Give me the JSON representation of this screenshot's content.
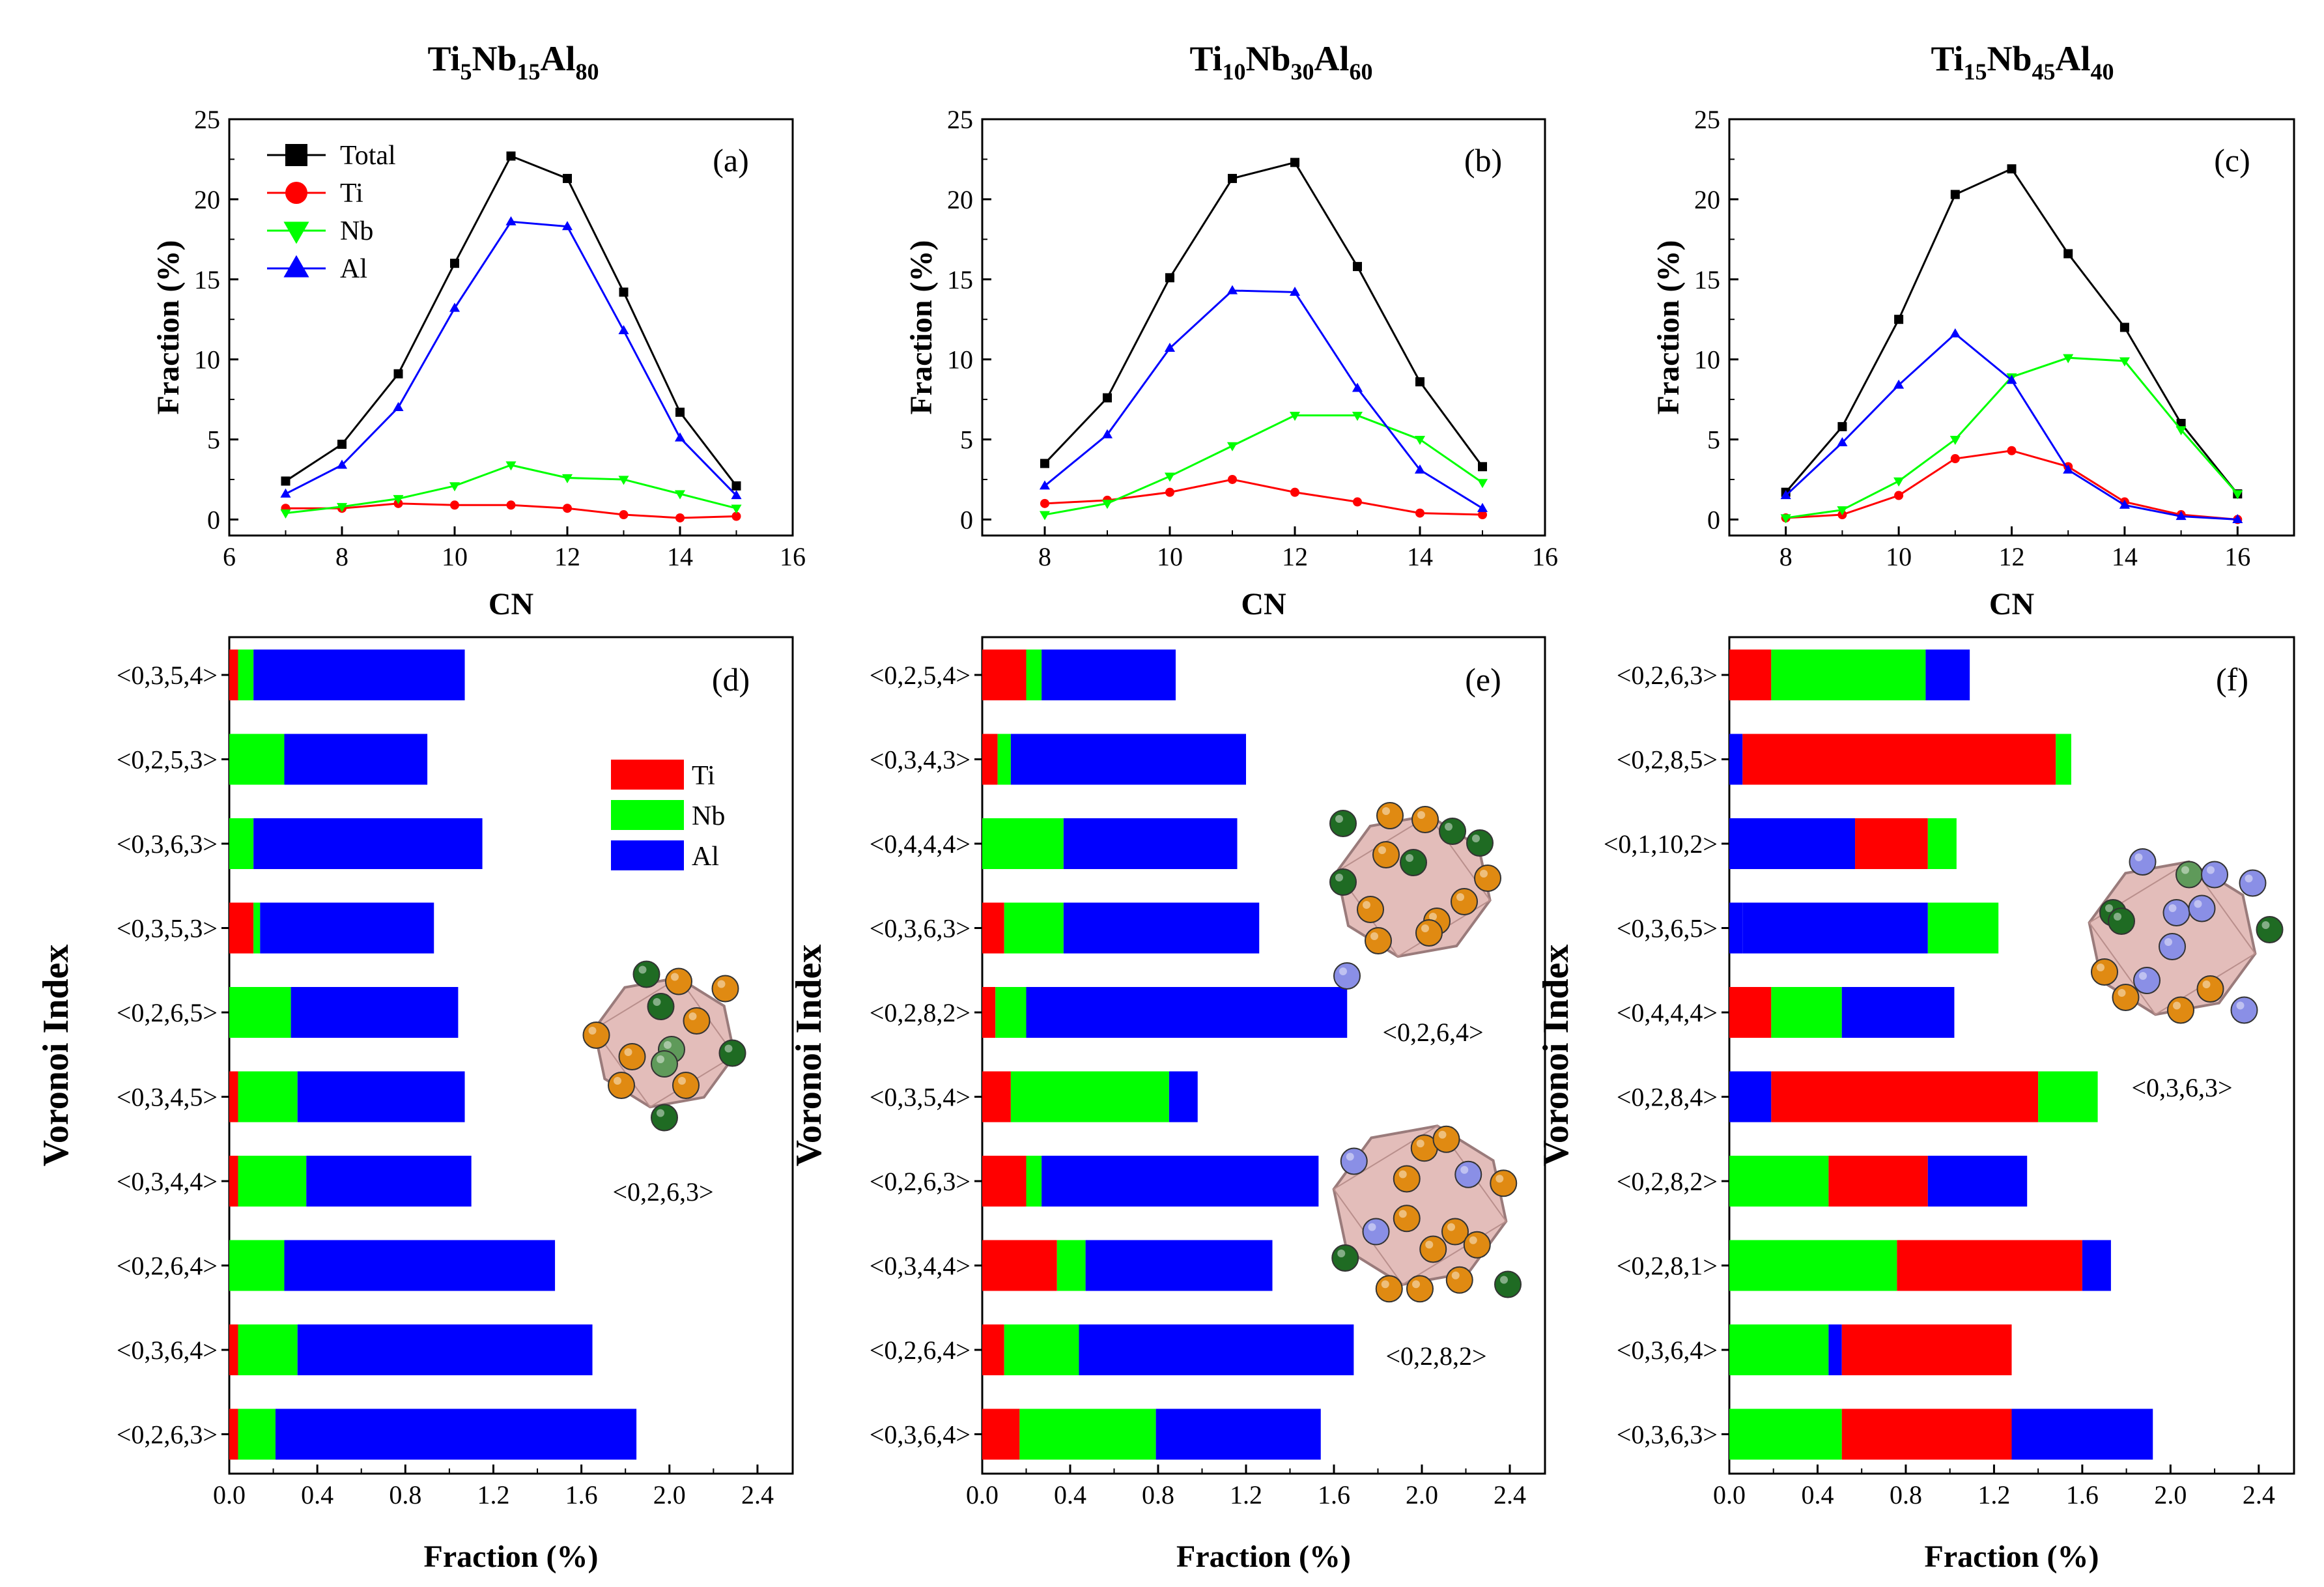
{
  "colors": {
    "Total": "#000000",
    "Ti": "#ff0000",
    "Nb": "#00ff00",
    "Al": "#0000ff",
    "frame": "#000000"
  },
  "legend_line": [
    {
      "key": "Total",
      "label": "Total",
      "marker": "square"
    },
    {
      "key": "Ti",
      "label": "Ti",
      "marker": "circle"
    },
    {
      "key": "Nb",
      "label": "Nb",
      "marker": "triangle-down"
    },
    {
      "key": "Al",
      "label": "Al",
      "marker": "triangle-up"
    }
  ],
  "legend_bar": [
    {
      "key": "Ti",
      "label": "Ti"
    },
    {
      "key": "Nb",
      "label": "Nb"
    },
    {
      "key": "Al",
      "label": "Al"
    }
  ],
  "columns": [
    {
      "title": {
        "parts": [
          {
            "text": "Ti",
            "sub": false
          },
          {
            "text": "5",
            "sub": true
          },
          {
            "text": "Nb",
            "sub": false
          },
          {
            "text": "15",
            "sub": true
          },
          {
            "text": "Al",
            "sub": false
          },
          {
            "text": "80",
            "sub": true
          }
        ]
      },
      "struct_label": "<0,2,6,3>"
    },
    {
      "title": {
        "parts": [
          {
            "text": "Ti",
            "sub": false
          },
          {
            "text": "10",
            "sub": true
          },
          {
            "text": "Nb",
            "sub": false
          },
          {
            "text": "30",
            "sub": true
          },
          {
            "text": "Al",
            "sub": false
          },
          {
            "text": "60",
            "sub": true
          }
        ]
      },
      "struct_labels": [
        "<0,2,6,4>",
        "<0,2,8,2>"
      ]
    },
    {
      "title": {
        "parts": [
          {
            "text": "Ti",
            "sub": false
          },
          {
            "text": "15",
            "sub": true
          },
          {
            "text": "Nb",
            "sub": false
          },
          {
            "text": "45",
            "sub": true
          },
          {
            "text": "Al",
            "sub": false
          },
          {
            "text": "40",
            "sub": true
          }
        ]
      },
      "struct_label": "<0,3,6,3>"
    }
  ],
  "chart_data": [
    {
      "panel": "(a)",
      "type": "line",
      "xlabel": "CN",
      "ylabel": "Fraction (%)",
      "xlim": [
        6,
        16
      ],
      "ylim": [
        -1,
        25
      ],
      "xticks": [
        6,
        8,
        10,
        12,
        14,
        16
      ],
      "yticks": [
        0,
        5,
        10,
        15,
        20,
        25
      ],
      "legend": "top-left",
      "series": [
        {
          "name": "Total",
          "x": [
            7,
            8,
            9,
            10,
            11,
            12,
            13,
            14,
            15
          ],
          "y": [
            2.4,
            4.7,
            9.1,
            16.0,
            22.7,
            21.3,
            14.2,
            6.7,
            2.1
          ]
        },
        {
          "name": "Ti",
          "x": [
            7,
            8,
            9,
            10,
            11,
            12,
            13,
            14,
            15
          ],
          "y": [
            0.7,
            0.7,
            1.0,
            0.9,
            0.9,
            0.7,
            0.3,
            0.1,
            0.2
          ]
        },
        {
          "name": "Nb",
          "x": [
            7,
            8,
            9,
            10,
            11,
            12,
            13,
            14,
            15
          ],
          "y": [
            0.4,
            0.8,
            1.3,
            2.1,
            3.4,
            2.6,
            2.5,
            1.6,
            0.7
          ]
        },
        {
          "name": "Al",
          "x": [
            7,
            8,
            9,
            10,
            11,
            12,
            13,
            14,
            15
          ],
          "y": [
            1.6,
            3.4,
            7.0,
            13.2,
            18.6,
            18.3,
            11.8,
            5.1,
            1.5
          ]
        }
      ]
    },
    {
      "panel": "(b)",
      "type": "line",
      "xlabel": "CN",
      "ylabel": "Fraction (%)",
      "xlim": [
        7,
        16
      ],
      "ylim": [
        -1,
        25
      ],
      "xticks": [
        8,
        10,
        12,
        14,
        16
      ],
      "yticks": [
        0,
        5,
        10,
        15,
        20,
        25
      ],
      "series": [
        {
          "name": "Total",
          "x": [
            8,
            9,
            10,
            11,
            12,
            13,
            14,
            15
          ],
          "y": [
            3.5,
            7.6,
            15.1,
            21.3,
            22.3,
            15.8,
            8.6,
            3.3
          ]
        },
        {
          "name": "Ti",
          "x": [
            8,
            9,
            10,
            11,
            12,
            13,
            14,
            15
          ],
          "y": [
            1.0,
            1.2,
            1.7,
            2.5,
            1.7,
            1.1,
            0.4,
            0.3
          ]
        },
        {
          "name": "Nb",
          "x": [
            8,
            9,
            10,
            11,
            12,
            13,
            14,
            15
          ],
          "y": [
            0.3,
            1.0,
            2.7,
            4.6,
            6.5,
            6.5,
            5.0,
            2.3
          ]
        },
        {
          "name": "Al",
          "x": [
            8,
            9,
            10,
            11,
            12,
            13,
            14,
            15
          ],
          "y": [
            2.1,
            5.3,
            10.7,
            14.3,
            14.2,
            8.2,
            3.1,
            0.7
          ]
        }
      ]
    },
    {
      "panel": "(c)",
      "type": "line",
      "xlabel": "CN",
      "ylabel": "Fraction (%)",
      "xlim": [
        7,
        17
      ],
      "ylim": [
        -1,
        25
      ],
      "xticks": [
        8,
        10,
        12,
        14,
        16
      ],
      "yticks": [
        0,
        5,
        10,
        15,
        20,
        25
      ],
      "series": [
        {
          "name": "Total",
          "x": [
            8,
            9,
            10,
            11,
            12,
            13,
            14,
            15,
            16
          ],
          "y": [
            1.7,
            5.8,
            12.5,
            20.3,
            21.9,
            16.6,
            12.0,
            6.0,
            1.6
          ]
        },
        {
          "name": "Ti",
          "x": [
            8,
            9,
            10,
            11,
            12,
            13,
            14,
            15,
            16
          ],
          "y": [
            0.1,
            0.3,
            1.5,
            3.8,
            4.3,
            3.3,
            1.1,
            0.3,
            0.0
          ]
        },
        {
          "name": "Nb",
          "x": [
            8,
            9,
            10,
            11,
            12,
            13,
            14,
            15,
            16
          ],
          "y": [
            0.1,
            0.6,
            2.4,
            5.0,
            8.9,
            10.1,
            9.9,
            5.6,
            1.6
          ]
        },
        {
          "name": "Al",
          "x": [
            8,
            9,
            10,
            11,
            12,
            13,
            14,
            15,
            16
          ],
          "y": [
            1.5,
            4.8,
            8.4,
            11.6,
            8.7,
            3.1,
            0.9,
            0.2,
            0.0
          ]
        }
      ]
    },
    {
      "panel": "(d)",
      "type": "bar",
      "orientation": "horizontal",
      "stacked": true,
      "xlabel": "Fraction (%)",
      "ylabel": "Voronoi Index",
      "xlim": [
        0,
        2.56
      ],
      "xticks": [
        0.0,
        0.4,
        0.8,
        1.2,
        1.6,
        2.0,
        2.4
      ],
      "categories": [
        "<0,3,5,4>",
        "<0,2,5,3>",
        "<0,3,6,3>",
        "<0,3,5,3>",
        "<0,2,6,5>",
        "<0,3,4,5>",
        "<0,3,4,4>",
        "<0,2,6,4>",
        "<0,3,6,4>",
        "<0,2,6,3>"
      ],
      "series": [
        {
          "name": "Ti",
          "values": [
            0.04,
            0.0,
            0.0,
            0.11,
            0.0,
            0.04,
            0.04,
            0.0,
            0.04,
            0.04
          ]
        },
        {
          "name": "Nb",
          "values": [
            0.07,
            0.25,
            0.11,
            0.03,
            0.28,
            0.27,
            0.31,
            0.25,
            0.27,
            0.17
          ]
        },
        {
          "name": "Al",
          "values": [
            0.96,
            0.65,
            1.04,
            0.79,
            0.76,
            0.76,
            0.75,
            1.23,
            1.34,
            1.64
          ]
        }
      ]
    },
    {
      "panel": "(e)",
      "type": "bar",
      "orientation": "horizontal",
      "stacked": true,
      "xlabel": "Fraction (%)",
      "ylabel": "Voronoi Index",
      "xlim": [
        0,
        2.56
      ],
      "xticks": [
        0.0,
        0.4,
        0.8,
        1.2,
        1.6,
        2.0,
        2.4
      ],
      "categories": [
        "<0,2,5,4>",
        "<0,3,4,3>",
        "<0,4,4,4>",
        "<0,3,6,3>",
        "<0,2,8,2>",
        "<0,3,5,4>",
        "<0,2,6,3>",
        "<0,3,4,4>",
        "<0,2,6,4>",
        "<0,3,6,4>"
      ],
      "series": [
        {
          "name": "Ti",
          "values": [
            0.2,
            0.07,
            0.0,
            0.1,
            0.06,
            0.13,
            0.2,
            0.34,
            0.1,
            0.17
          ]
        },
        {
          "name": "Nb",
          "values": [
            0.07,
            0.06,
            0.37,
            0.27,
            0.14,
            0.72,
            0.07,
            0.13,
            0.34,
            0.62
          ]
        },
        {
          "name": "Al",
          "values": [
            0.61,
            1.07,
            0.79,
            0.89,
            1.46,
            0.13,
            1.26,
            0.85,
            1.25,
            0.75
          ]
        }
      ]
    },
    {
      "panel": "(f)",
      "type": "bar",
      "orientation": "horizontal",
      "stacked": true,
      "xlabel": "Fraction (%)",
      "ylabel": "Voronoi Index",
      "xlim": [
        0,
        2.56
      ],
      "xticks": [
        0.0,
        0.4,
        0.8,
        1.2,
        1.6,
        2.0,
        2.4
      ],
      "categories": [
        "<0,2,6,3>",
        "<0,2,8,5>",
        "<0,1,10,2>",
        "<0,3,6,5>",
        "<0,4,4,4>",
        "<0,2,8,4>",
        "<0,2,8,2>",
        "<0,2,8,1>",
        "<0,3,6,4>",
        "<0,3,6,3>"
      ],
      "segments": [
        [
          {
            "name": "Ti",
            "value": 0.19
          },
          {
            "name": "Nb",
            "value": 0.7
          },
          {
            "name": "Al",
            "value": 0.2
          }
        ],
        [
          {
            "name": "Al",
            "value": 0.06
          },
          {
            "name": "Ti",
            "value": 1.42
          },
          {
            "name": "Nb",
            "value": 0.07
          }
        ],
        [
          {
            "name": "Al",
            "value": 0.57
          },
          {
            "name": "Ti",
            "value": 0.33
          },
          {
            "name": "Nb",
            "value": 0.13
          }
        ],
        [
          {
            "name": "Al",
            "value": 0.06
          },
          {
            "name": "Nb",
            "value": 0.0
          },
          {
            "name": "Al",
            "value": 0.84
          },
          {
            "name": "Nb",
            "value": 0.32
          }
        ],
        [
          {
            "name": "Ti",
            "value": 0.19
          },
          {
            "name": "Nb",
            "value": 0.32
          },
          {
            "name": "Al",
            "value": 0.51
          }
        ],
        [
          {
            "name": "Al",
            "value": 0.19
          },
          {
            "name": "Ti",
            "value": 1.21
          },
          {
            "name": "Nb",
            "value": 0.27
          }
        ],
        [
          {
            "name": "Nb",
            "value": 0.45
          },
          {
            "name": "Ti",
            "value": 0.45
          },
          {
            "name": "Al",
            "value": 0.45
          }
        ],
        [
          {
            "name": "Nb",
            "value": 0.76
          },
          {
            "name": "Ti",
            "value": 0.84
          },
          {
            "name": "Al",
            "value": 0.13
          }
        ],
        [
          {
            "name": "Nb",
            "value": 0.45
          },
          {
            "name": "Al",
            "value": 0.06
          },
          {
            "name": "Ti",
            "value": 0.77
          }
        ],
        [
          {
            "name": "Nb",
            "value": 0.51
          },
          {
            "name": "Ti",
            "value": 0.77
          },
          {
            "name": "Al",
            "value": 0.64
          }
        ]
      ]
    }
  ]
}
